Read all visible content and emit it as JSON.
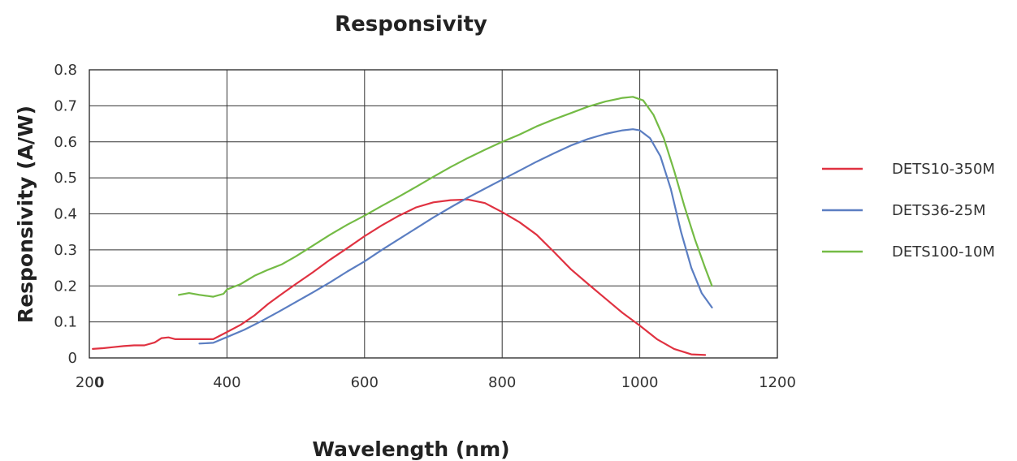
{
  "chart_data": {
    "type": "line",
    "title": "Responsivity",
    "xlabel": "Wavelength (nm)",
    "ylabel": "Responsivity (A/W)",
    "xlim": [
      0,
      1200
    ],
    "ylim": [
      0,
      0.8
    ],
    "x_ticks": [
      "0",
      "200",
      "400",
      "600",
      "800",
      "1000",
      "1200"
    ],
    "y_ticks": [
      "0",
      "0.1",
      "0.2",
      "0.3",
      "0.4",
      "0.5",
      "0.6",
      "0.7",
      "0.8"
    ],
    "grid": true,
    "legend_position": "right",
    "series": [
      {
        "name": "DETS10-350M",
        "color": "#e03241",
        "points": [
          [
            205,
            0.025
          ],
          [
            220,
            0.027
          ],
          [
            235,
            0.03
          ],
          [
            250,
            0.033
          ],
          [
            265,
            0.035
          ],
          [
            280,
            0.035
          ],
          [
            295,
            0.043
          ],
          [
            305,
            0.055
          ],
          [
            315,
            0.057
          ],
          [
            325,
            0.052
          ],
          [
            340,
            0.052
          ],
          [
            360,
            0.052
          ],
          [
            380,
            0.052
          ],
          [
            400,
            0.072
          ],
          [
            420,
            0.092
          ],
          [
            440,
            0.118
          ],
          [
            460,
            0.15
          ],
          [
            480,
            0.178
          ],
          [
            500,
            0.205
          ],
          [
            525,
            0.238
          ],
          [
            550,
            0.273
          ],
          [
            575,
            0.305
          ],
          [
            600,
            0.338
          ],
          [
            625,
            0.368
          ],
          [
            650,
            0.395
          ],
          [
            675,
            0.418
          ],
          [
            700,
            0.432
          ],
          [
            725,
            0.438
          ],
          [
            750,
            0.44
          ],
          [
            775,
            0.43
          ],
          [
            800,
            0.405
          ],
          [
            825,
            0.377
          ],
          [
            850,
            0.342
          ],
          [
            875,
            0.295
          ],
          [
            900,
            0.246
          ],
          [
            925,
            0.205
          ],
          [
            950,
            0.165
          ],
          [
            975,
            0.125
          ],
          [
            1000,
            0.09
          ],
          [
            1025,
            0.052
          ],
          [
            1050,
            0.025
          ],
          [
            1075,
            0.01
          ],
          [
            1095,
            0.008
          ]
        ]
      },
      {
        "name": "DETS36-25M",
        "color": "#5b7ec2",
        "points": [
          [
            360,
            0.04
          ],
          [
            380,
            0.042
          ],
          [
            400,
            0.058
          ],
          [
            425,
            0.078
          ],
          [
            450,
            0.102
          ],
          [
            475,
            0.128
          ],
          [
            500,
            0.155
          ],
          [
            525,
            0.182
          ],
          [
            550,
            0.21
          ],
          [
            575,
            0.24
          ],
          [
            600,
            0.268
          ],
          [
            625,
            0.3
          ],
          [
            650,
            0.33
          ],
          [
            675,
            0.36
          ],
          [
            700,
            0.39
          ],
          [
            725,
            0.418
          ],
          [
            750,
            0.445
          ],
          [
            775,
            0.47
          ],
          [
            800,
            0.495
          ],
          [
            825,
            0.52
          ],
          [
            850,
            0.545
          ],
          [
            875,
            0.568
          ],
          [
            900,
            0.59
          ],
          [
            925,
            0.608
          ],
          [
            950,
            0.622
          ],
          [
            975,
            0.632
          ],
          [
            990,
            0.635
          ],
          [
            1000,
            0.632
          ],
          [
            1015,
            0.61
          ],
          [
            1030,
            0.56
          ],
          [
            1045,
            0.47
          ],
          [
            1060,
            0.35
          ],
          [
            1075,
            0.25
          ],
          [
            1090,
            0.18
          ],
          [
            1105,
            0.14
          ]
        ]
      },
      {
        "name": "DETS100-10M",
        "color": "#74bb45",
        "points": [
          [
            330,
            0.175
          ],
          [
            345,
            0.18
          ],
          [
            360,
            0.175
          ],
          [
            380,
            0.17
          ],
          [
            395,
            0.178
          ],
          [
            400,
            0.19
          ],
          [
            420,
            0.205
          ],
          [
            440,
            0.228
          ],
          [
            460,
            0.245
          ],
          [
            480,
            0.26
          ],
          [
            500,
            0.282
          ],
          [
            525,
            0.312
          ],
          [
            550,
            0.342
          ],
          [
            575,
            0.37
          ],
          [
            600,
            0.395
          ],
          [
            625,
            0.422
          ],
          [
            650,
            0.448
          ],
          [
            675,
            0.475
          ],
          [
            700,
            0.503
          ],
          [
            725,
            0.53
          ],
          [
            750,
            0.555
          ],
          [
            775,
            0.578
          ],
          [
            800,
            0.6
          ],
          [
            825,
            0.62
          ],
          [
            850,
            0.643
          ],
          [
            875,
            0.662
          ],
          [
            900,
            0.68
          ],
          [
            925,
            0.698
          ],
          [
            950,
            0.712
          ],
          [
            975,
            0.722
          ],
          [
            990,
            0.725
          ],
          [
            1005,
            0.715
          ],
          [
            1020,
            0.675
          ],
          [
            1035,
            0.61
          ],
          [
            1050,
            0.52
          ],
          [
            1065,
            0.42
          ],
          [
            1080,
            0.33
          ],
          [
            1095,
            0.25
          ],
          [
            1105,
            0.2
          ]
        ]
      }
    ]
  }
}
